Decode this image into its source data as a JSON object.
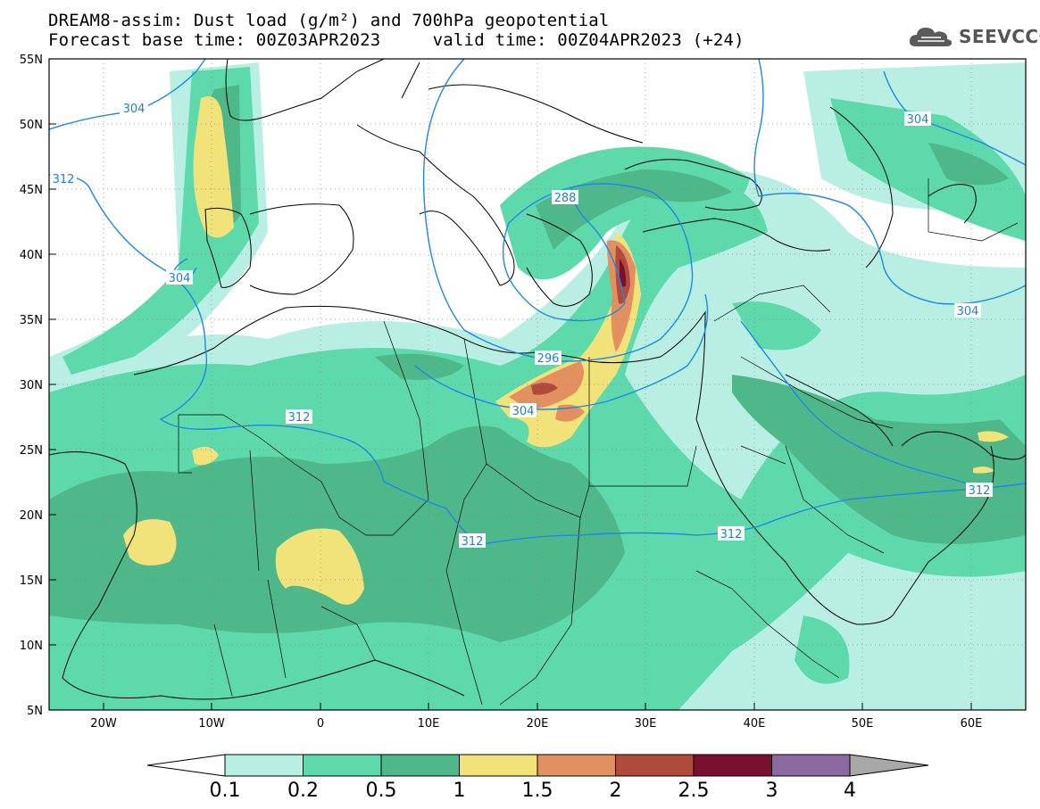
{
  "title_line1": "DREAM8-assim: Dust load (g/m²) and 700hPa geopotential",
  "title_line2": "Forecast base time: 00Z03APR2023     valid time: 00Z04APR2023 (+24)",
  "logo_text": "SEEVCCC",
  "lat_ticks": [
    "55N",
    "50N",
    "45N",
    "40N",
    "35N",
    "30N",
    "25N",
    "20N",
    "15N",
    "10N",
    "5N"
  ],
  "lon_ticks": [
    "20W",
    "10W",
    "0",
    "10E",
    "20E",
    "30E",
    "40E",
    "50E",
    "60E"
  ],
  "colorbar": {
    "labels": [
      "0.1",
      "0.2",
      "0.5",
      "1",
      "1.5",
      "2",
      "2.5",
      "3",
      "4"
    ],
    "colors": [
      "#b8efe2",
      "#5dd9ab",
      "#4fb88a",
      "#f2e27a",
      "#e39060",
      "#b04a3a",
      "#7a1030",
      "#8a6aa0"
    ],
    "under_color": "#ffffff",
    "over_color": "#a8a8a8"
  },
  "contour_labels": {
    "l304_nw": "304",
    "l312_w": "312",
    "l304_iberia": "304",
    "l288": "288",
    "l296": "296",
    "l304_libya": "304",
    "l312_africa": "312",
    "l312_sudan": "312",
    "l312_red": "312",
    "l304_kaz": "304",
    "l304_iran": "304",
    "l312_oman": "312"
  },
  "map_colors": {
    "contour": "#1e88e5",
    "coast": "#000000",
    "grid": "#888888"
  }
}
